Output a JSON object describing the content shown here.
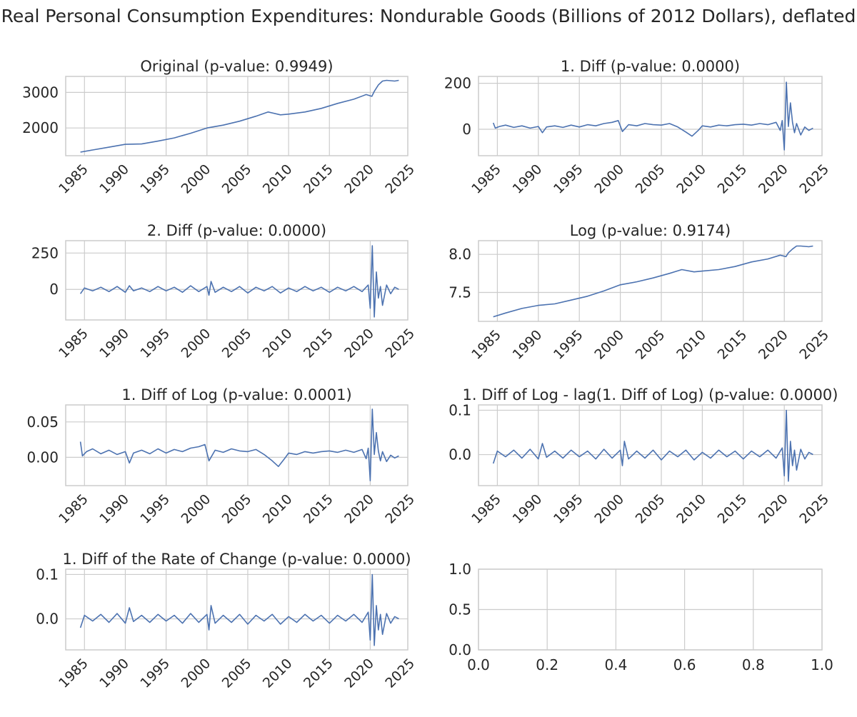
{
  "figure": {
    "title": "Real Personal Consumption Expenditures: Nondurable Goods (Billions of 2012 Dollars), deflated",
    "line_color": "#4c72b0",
    "grid_color": "#cccccc"
  },
  "chart_data": [
    {
      "type": "line",
      "title": "Original (p-value: 0.9949)",
      "xlim": [
        1982.7,
        2024.6
      ],
      "ylim": [
        1220,
        3450
      ],
      "xticks": [
        1985,
        1990,
        1995,
        2000,
        2005,
        2010,
        2015,
        2020,
        2025
      ],
      "yticks": [
        2000,
        3000
      ],
      "ytick_labels": [
        "2000",
        "3000"
      ],
      "x": [
        1984.5,
        1986,
        1988,
        1990,
        1992,
        1994,
        1996,
        1998,
        2000,
        2002,
        2004,
        2006,
        2007.5,
        2009,
        2010,
        2012,
        2014,
        2016,
        2018,
        2019.5,
        2020.2,
        2020.5,
        2021,
        2021.5,
        2022,
        2023,
        2023.5
      ],
      "y": [
        1320,
        1380,
        1460,
        1540,
        1550,
        1630,
        1720,
        1850,
        2000,
        2080,
        2190,
        2330,
        2450,
        2370,
        2390,
        2450,
        2550,
        2690,
        2810,
        2940,
        2890,
        3030,
        3210,
        3320,
        3340,
        3320,
        3340
      ]
    },
    {
      "type": "line",
      "title": "1. Diff (p-value: 0.0000)",
      "xlim": [
        1982.7,
        2024.6
      ],
      "ylim": [
        -115,
        230
      ],
      "xticks": [
        1985,
        1990,
        1995,
        2000,
        2005,
        2010,
        2015,
        2020,
        2025
      ],
      "yticks": [
        0,
        200
      ],
      "ytick_labels": [
        "0",
        "200"
      ],
      "x": [
        1984.5,
        1984.75,
        1985.25,
        1986,
        1987,
        1988,
        1989,
        1990,
        1990.5,
        1991,
        1992,
        1993,
        1994,
        1995,
        1996,
        1997,
        1998,
        1999,
        1999.75,
        2000.25,
        2001,
        2002,
        2003,
        2004,
        2005,
        2006,
        2007,
        2008,
        2008.75,
        2009.5,
        2010,
        2011,
        2012,
        2013,
        2014,
        2015,
        2016,
        2017,
        2018,
        2019,
        2019.5,
        2019.75,
        2020,
        2020.25,
        2020.5,
        2020.75,
        2021,
        2021.25,
        2021.5,
        2022,
        2022.5,
        2023,
        2023.5
      ],
      "y": [
        28,
        5,
        12,
        18,
        8,
        15,
        5,
        12,
        -15,
        10,
        15,
        8,
        18,
        10,
        20,
        15,
        25,
        30,
        38,
        -10,
        20,
        15,
        25,
        20,
        18,
        25,
        10,
        -12,
        -30,
        -5,
        15,
        10,
        18,
        15,
        20,
        22,
        18,
        25,
        20,
        30,
        -5,
        38,
        -90,
        205,
        12,
        115,
        30,
        -15,
        25,
        -25,
        10,
        -5,
        5
      ]
    },
    {
      "type": "line",
      "title": "2. Diff (p-value: 0.0000)",
      "xlim": [
        1982.7,
        2024.6
      ],
      "ylim": [
        -210,
        335
      ],
      "xticks": [
        1985,
        1990,
        1995,
        2000,
        2005,
        2010,
        2015,
        2020,
        2025
      ],
      "yticks": [
        0,
        250
      ],
      "ytick_labels": [
        "0",
        "250"
      ],
      "x": [
        1984.5,
        1985,
        1986,
        1987,
        1988,
        1989,
        1990,
        1990.5,
        1991,
        1992,
        1993,
        1994,
        1995,
        1996,
        1997,
        1998,
        1999,
        2000,
        2000.25,
        2000.5,
        2001,
        2002,
        2003,
        2004,
        2005,
        2006,
        2007,
        2008,
        2009,
        2010,
        2011,
        2012,
        2013,
        2014,
        2015,
        2016,
        2017,
        2018,
        2019,
        2019.75,
        2020,
        2020.25,
        2020.5,
        2020.75,
        2021,
        2021.25,
        2021.5,
        2022,
        2022.5,
        2023,
        2023.5
      ],
      "y": [
        -30,
        10,
        -10,
        15,
        -15,
        20,
        -20,
        25,
        -10,
        10,
        -15,
        20,
        -10,
        15,
        -20,
        25,
        -15,
        20,
        -40,
        55,
        -20,
        15,
        -15,
        20,
        -25,
        15,
        -10,
        20,
        -25,
        10,
        -15,
        20,
        -10,
        15,
        -20,
        15,
        -10,
        20,
        -15,
        30,
        -130,
        300,
        -190,
        120,
        -60,
        20,
        -110,
        30,
        -30,
        15,
        0
      ]
    },
    {
      "type": "line",
      "title": "Log (p-value: 0.9174)",
      "xlim": [
        1982.7,
        2024.6
      ],
      "ylim": [
        7.12,
        8.18
      ],
      "xticks": [
        1985,
        1990,
        1995,
        2000,
        2005,
        2010,
        2015,
        2020,
        2025
      ],
      "yticks": [
        7.5,
        8.0
      ],
      "ytick_labels": [
        "7.5",
        "8.0"
      ],
      "x": [
        1984.5,
        1986,
        1988,
        1990,
        1992,
        1994,
        1996,
        1998,
        2000,
        2002,
        2004,
        2006,
        2007.5,
        2009,
        2010,
        2012,
        2014,
        2016,
        2018,
        2019.5,
        2020.2,
        2020.5,
        2021,
        2021.5,
        2022,
        2023,
        2023.5
      ],
      "y": [
        7.18,
        7.23,
        7.29,
        7.33,
        7.35,
        7.4,
        7.45,
        7.52,
        7.6,
        7.64,
        7.69,
        7.75,
        7.8,
        7.77,
        7.78,
        7.8,
        7.84,
        7.9,
        7.94,
        7.99,
        7.97,
        8.02,
        8.07,
        8.11,
        8.11,
        8.1,
        8.11
      ]
    },
    {
      "type": "line",
      "title": "1. Diff of Log (p-value: 0.0001)",
      "xlim": [
        1982.7,
        2024.6
      ],
      "ylim": [
        -0.04,
        0.074
      ],
      "xticks": [
        1985,
        1990,
        1995,
        2000,
        2005,
        2010,
        2015,
        2020,
        2025
      ],
      "yticks": [
        0.0,
        0.05
      ],
      "ytick_labels": [
        "0.00",
        "0.05"
      ],
      "x": [
        1984.5,
        1984.75,
        1985.25,
        1986,
        1987,
        1988,
        1989,
        1990,
        1990.5,
        1991,
        1992,
        1993,
        1994,
        1995,
        1996,
        1997,
        1998,
        1999,
        1999.75,
        2000.25,
        2001,
        2002,
        2003,
        2004,
        2005,
        2006,
        2007,
        2008,
        2008.75,
        2009.5,
        2010,
        2011,
        2012,
        2013,
        2014,
        2015,
        2016,
        2017,
        2018,
        2019,
        2019.5,
        2019.75,
        2020,
        2020.25,
        2020.5,
        2020.75,
        2021,
        2021.25,
        2021.5,
        2022,
        2022.5,
        2023,
        2023.5
      ],
      "y": [
        0.022,
        0.002,
        0.008,
        0.012,
        0.005,
        0.01,
        0.004,
        0.008,
        -0.008,
        0.006,
        0.01,
        0.005,
        0.012,
        0.006,
        0.011,
        0.008,
        0.013,
        0.015,
        0.018,
        -0.005,
        0.01,
        0.007,
        0.012,
        0.009,
        0.008,
        0.011,
        0.004,
        -0.005,
        -0.013,
        -0.002,
        0.006,
        0.004,
        0.008,
        0.006,
        0.008,
        0.009,
        0.007,
        0.01,
        0.007,
        0.011,
        -0.002,
        0.013,
        -0.033,
        0.068,
        0.004,
        0.035,
        0.009,
        -0.005,
        0.008,
        -0.006,
        0.003,
        -0.001,
        0.002
      ]
    },
    {
      "type": "line",
      "title": "1. Diff of Log - lag(1. Diff of Log) (p-value: 0.0000)",
      "xlim": [
        1982.7,
        2024.6
      ],
      "ylim": [
        -0.07,
        0.112
      ],
      "xticks": [
        1985,
        1990,
        1995,
        2000,
        2005,
        2010,
        2015,
        2020,
        2025
      ],
      "yticks": [
        0.0,
        0.1
      ],
      "ytick_labels": [
        "0.0",
        "0.1"
      ],
      "x": [
        1984.5,
        1985,
        1986,
        1987,
        1988,
        1989,
        1990,
        1990.5,
        1991,
        1992,
        1993,
        1994,
        1995,
        1996,
        1997,
        1998,
        1999,
        2000,
        2000.25,
        2000.5,
        2001,
        2002,
        2003,
        2004,
        2005,
        2006,
        2007,
        2008,
        2009,
        2010,
        2011,
        2012,
        2013,
        2014,
        2015,
        2016,
        2017,
        2018,
        2019,
        2019.75,
        2020,
        2020.25,
        2020.5,
        2020.75,
        2021,
        2021.25,
        2021.5,
        2022,
        2022.5,
        2023,
        2023.5
      ],
      "y": [
        -0.02,
        0.008,
        -0.005,
        0.01,
        -0.008,
        0.012,
        -0.01,
        0.025,
        -0.006,
        0.008,
        -0.008,
        0.01,
        -0.005,
        0.008,
        -0.01,
        0.012,
        -0.008,
        0.01,
        -0.025,
        0.03,
        -0.01,
        0.008,
        -0.008,
        0.01,
        -0.012,
        0.008,
        -0.005,
        0.01,
        -0.012,
        0.005,
        -0.008,
        0.01,
        -0.005,
        0.008,
        -0.01,
        0.008,
        -0.005,
        0.01,
        -0.008,
        0.015,
        -0.048,
        0.1,
        -0.06,
        0.03,
        -0.025,
        0.01,
        -0.035,
        0.012,
        -0.01,
        0.005,
        0.0
      ]
    },
    {
      "type": "line",
      "title": "1. Diff of the Rate of Change (p-value: 0.0000)",
      "xlim": [
        1982.7,
        2024.6
      ],
      "ylim": [
        -0.07,
        0.112
      ],
      "xticks": [
        1985,
        1990,
        1995,
        2000,
        2005,
        2010,
        2015,
        2020,
        2025
      ],
      "yticks": [
        0.0,
        0.1
      ],
      "ytick_labels": [
        "0.0",
        "0.1"
      ],
      "x": [
        1984.5,
        1985,
        1986,
        1987,
        1988,
        1989,
        1990,
        1990.5,
        1991,
        1992,
        1993,
        1994,
        1995,
        1996,
        1997,
        1998,
        1999,
        2000,
        2000.25,
        2000.5,
        2001,
        2002,
        2003,
        2004,
        2005,
        2006,
        2007,
        2008,
        2009,
        2010,
        2011,
        2012,
        2013,
        2014,
        2015,
        2016,
        2017,
        2018,
        2019,
        2019.75,
        2020,
        2020.25,
        2020.5,
        2020.75,
        2021,
        2021.25,
        2021.5,
        2022,
        2022.5,
        2023,
        2023.5
      ],
      "y": [
        -0.02,
        0.008,
        -0.005,
        0.01,
        -0.008,
        0.012,
        -0.01,
        0.025,
        -0.006,
        0.008,
        -0.008,
        0.01,
        -0.005,
        0.008,
        -0.01,
        0.012,
        -0.008,
        0.01,
        -0.025,
        0.03,
        -0.01,
        0.008,
        -0.008,
        0.01,
        -0.012,
        0.008,
        -0.005,
        0.01,
        -0.012,
        0.005,
        -0.008,
        0.01,
        -0.005,
        0.008,
        -0.01,
        0.008,
        -0.005,
        0.01,
        -0.008,
        0.015,
        -0.048,
        0.1,
        -0.06,
        0.03,
        -0.025,
        0.01,
        -0.035,
        0.012,
        -0.01,
        0.005,
        0.0
      ]
    },
    {
      "type": "line",
      "title": "",
      "xlim": [
        0,
        1
      ],
      "ylim": [
        0,
        1
      ],
      "xticks": [
        0.0,
        0.2,
        0.4,
        0.6,
        0.8,
        1.0
      ],
      "xtick_labels": [
        "0.0",
        "0.2",
        "0.4",
        "0.6",
        "0.8",
        "1.0"
      ],
      "yticks": [
        0.0,
        0.5,
        1.0
      ],
      "ytick_labels": [
        "0.0",
        "0.5",
        "1.0"
      ],
      "x": [],
      "y": [],
      "empty": true
    }
  ]
}
